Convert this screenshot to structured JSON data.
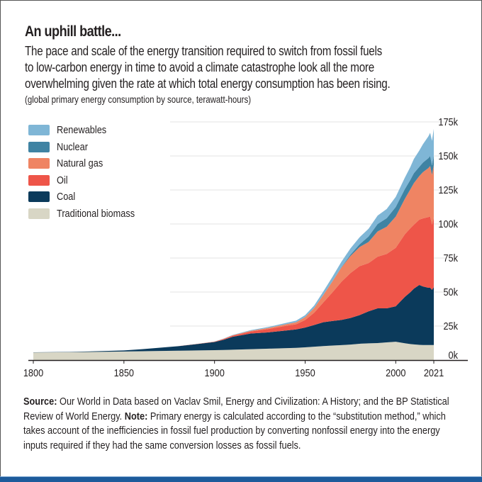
{
  "header": {
    "title": "An uphill battle...",
    "subtitle_lines": [
      "The pace and scale of the energy transition required to switch from fossil fuels",
      "to low-carbon energy in time to avoid a climate catastrophe look all the more",
      "overwhelming given the rate at which total energy consumption has been rising."
    ],
    "units": "(global primary energy consumption by source, terawatt-hours)"
  },
  "legend": [
    {
      "label": "Renewables",
      "color": "#7fb6d6"
    },
    {
      "label": "Nuclear",
      "color": "#3f83a3"
    },
    {
      "label": "Natural gas",
      "color": "#ef8463"
    },
    {
      "label": "Oil",
      "color": "#ee5549"
    },
    {
      "label": "Coal",
      "color": "#0b3a5b"
    },
    {
      "label": "Traditional biomass",
      "color": "#d8d6c5"
    }
  ],
  "footnote": {
    "source_label": "Source:",
    "source_text": " Our World in Data based on Vaclav Smil, Energy and Civilization: A History; and the BP Statistical Review of World Energy. ",
    "note_label": "Note:",
    "note_text": " Primary energy is calculated according to the “substitution method,” which takes account of the inefficiencies in fossil fuel production by converting nonfossil energy into the energy inputs required if they had the same conversion losses as fossil fuels."
  },
  "chart_data": {
    "type": "area",
    "stacked": true,
    "title": "An uphill battle...",
    "xlabel": "",
    "ylabel": "terawatt-hours",
    "xlim": [
      1800,
      2021
    ],
    "ylim": [
      0,
      175000
    ],
    "x_ticks": [
      1800,
      1850,
      1900,
      1950,
      2000,
      2021
    ],
    "x_tick_labels": [
      "1800",
      "1850",
      "1900",
      "1950",
      "2000",
      "2021"
    ],
    "y_ticks": [
      0,
      25000,
      50000,
      75000,
      100000,
      125000,
      150000,
      175000
    ],
    "y_tick_labels": [
      "0k",
      "25k",
      "50k",
      "75k",
      "100k",
      "125k",
      "150k",
      "175k"
    ],
    "y_axis_side": "right",
    "grid": "horizontal",
    "legend_position": "top-left",
    "x": [
      1800,
      1820,
      1840,
      1850,
      1860,
      1870,
      1880,
      1890,
      1900,
      1905,
      1910,
      1920,
      1930,
      1940,
      1945,
      1950,
      1955,
      1960,
      1965,
      1970,
      1975,
      1980,
      1985,
      1990,
      1995,
      2000,
      2005,
      2008,
      2010,
      2013,
      2015,
      2018,
      2019,
      2020,
      2021
    ],
    "series": [
      {
        "name": "Traditional biomass",
        "values": [
          5600,
          5800,
          6100,
          6300,
          6500,
          6700,
          6900,
          7100,
          7300,
          7400,
          7600,
          8000,
          8400,
          8800,
          9000,
          9400,
          9800,
          10300,
          10700,
          11000,
          11400,
          12000,
          12300,
          12500,
          13000,
          13500,
          12400,
          11800,
          11500,
          11200,
          11100,
          11100,
          11100,
          11100,
          11100
        ]
      },
      {
        "name": "Coal",
        "values": [
          100,
          200,
          600,
          800,
          1500,
          2400,
          3300,
          4600,
          6000,
          7500,
          9500,
          11500,
          12000,
          13000,
          13500,
          14500,
          16000,
          17500,
          18000,
          18500,
          19500,
          21000,
          23500,
          25500,
          25000,
          26000,
          34000,
          38000,
          41000,
          44000,
          43000,
          42000,
          42000,
          40500,
          42500
        ]
      },
      {
        "name": "Oil",
        "values": [
          0,
          0,
          0,
          0,
          0,
          0,
          50,
          100,
          200,
          500,
          800,
          1500,
          2500,
          3500,
          3800,
          5500,
          9000,
          14500,
          21000,
          28000,
          33000,
          36000,
          35500,
          38000,
          40000,
          43000,
          46000,
          47000,
          47000,
          48000,
          50000,
          52000,
          52500,
          48000,
          51000
        ]
      },
      {
        "name": "Natural gas",
        "values": [
          0,
          0,
          0,
          0,
          0,
          0,
          0,
          50,
          100,
          200,
          300,
          500,
          800,
          1200,
          1500,
          2200,
          3500,
          5500,
          8000,
          10500,
          12500,
          14000,
          15500,
          18500,
          20000,
          23000,
          26000,
          28500,
          30500,
          32000,
          34000,
          36000,
          37000,
          36500,
          38500
        ]
      },
      {
        "name": "Nuclear",
        "values": [
          0,
          0,
          0,
          0,
          0,
          0,
          0,
          0,
          0,
          0,
          0,
          0,
          0,
          0,
          0,
          0,
          0,
          0,
          100,
          200,
          1000,
          2000,
          4000,
          5500,
          6200,
          7000,
          7200,
          7000,
          7300,
          6800,
          7000,
          7300,
          7400,
          7000,
          7300
        ]
      },
      {
        "name": "Renewables",
        "values": [
          0,
          0,
          0,
          0,
          0,
          0,
          0,
          0,
          100,
          200,
          300,
          500,
          700,
          1000,
          1200,
          1400,
          1800,
          2500,
          3200,
          4000,
          4600,
          5200,
          5700,
          6200,
          6800,
          7400,
          8400,
          9400,
          10500,
          12000,
          13500,
          16000,
          17000,
          18000,
          19500
        ]
      }
    ]
  }
}
